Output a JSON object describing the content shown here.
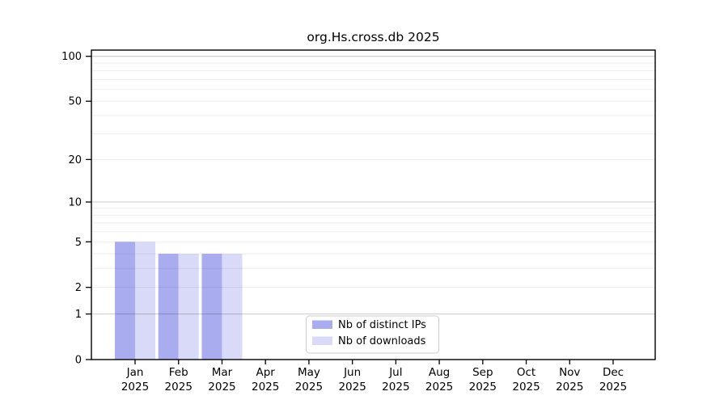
{
  "figure": {
    "background": "#ffffff",
    "title": "org.Hs.cross.db 2025"
  },
  "chart_data": {
    "type": "bar",
    "title": "org.Hs.cross.db 2025",
    "categories": [
      "Jan",
      "Feb",
      "Mar",
      "Apr",
      "May",
      "Jun",
      "Jul",
      "Aug",
      "Sep",
      "Oct",
      "Nov",
      "Dec"
    ],
    "category_year": "2025",
    "series": [
      {
        "name": "Nb of distinct IPs",
        "color": "#aaacf0",
        "values": [
          5,
          4,
          4,
          0,
          0,
          0,
          0,
          0,
          0,
          0,
          0,
          0
        ]
      },
      {
        "name": "Nb of downloads",
        "color": "#d8daf8",
        "values": [
          5,
          4,
          4,
          0,
          0,
          0,
          0,
          0,
          0,
          0,
          0,
          0
        ]
      }
    ],
    "xlabel": "",
    "ylabel": "",
    "yscale": "log1p",
    "yticks": [
      0,
      1,
      2,
      5,
      10,
      20,
      50,
      100
    ],
    "ylim": [
      0,
      110
    ],
    "grid": {
      "on": true,
      "major_values": [
        1,
        10,
        100
      ],
      "minor_values": [
        2,
        3,
        4,
        5,
        6,
        7,
        8,
        9,
        20,
        30,
        40,
        50,
        60,
        70,
        80,
        90
      ],
      "major_color": "#c9c9c9",
      "minor_color": "#ededed"
    },
    "legend": {
      "position": "inside-bottom-center",
      "entries": [
        {
          "label": "Nb of distinct IPs",
          "color": "#aaacf0"
        },
        {
          "label": "Nb of downloads",
          "color": "#d8daf8"
        }
      ]
    },
    "axis_color": "#000000"
  }
}
